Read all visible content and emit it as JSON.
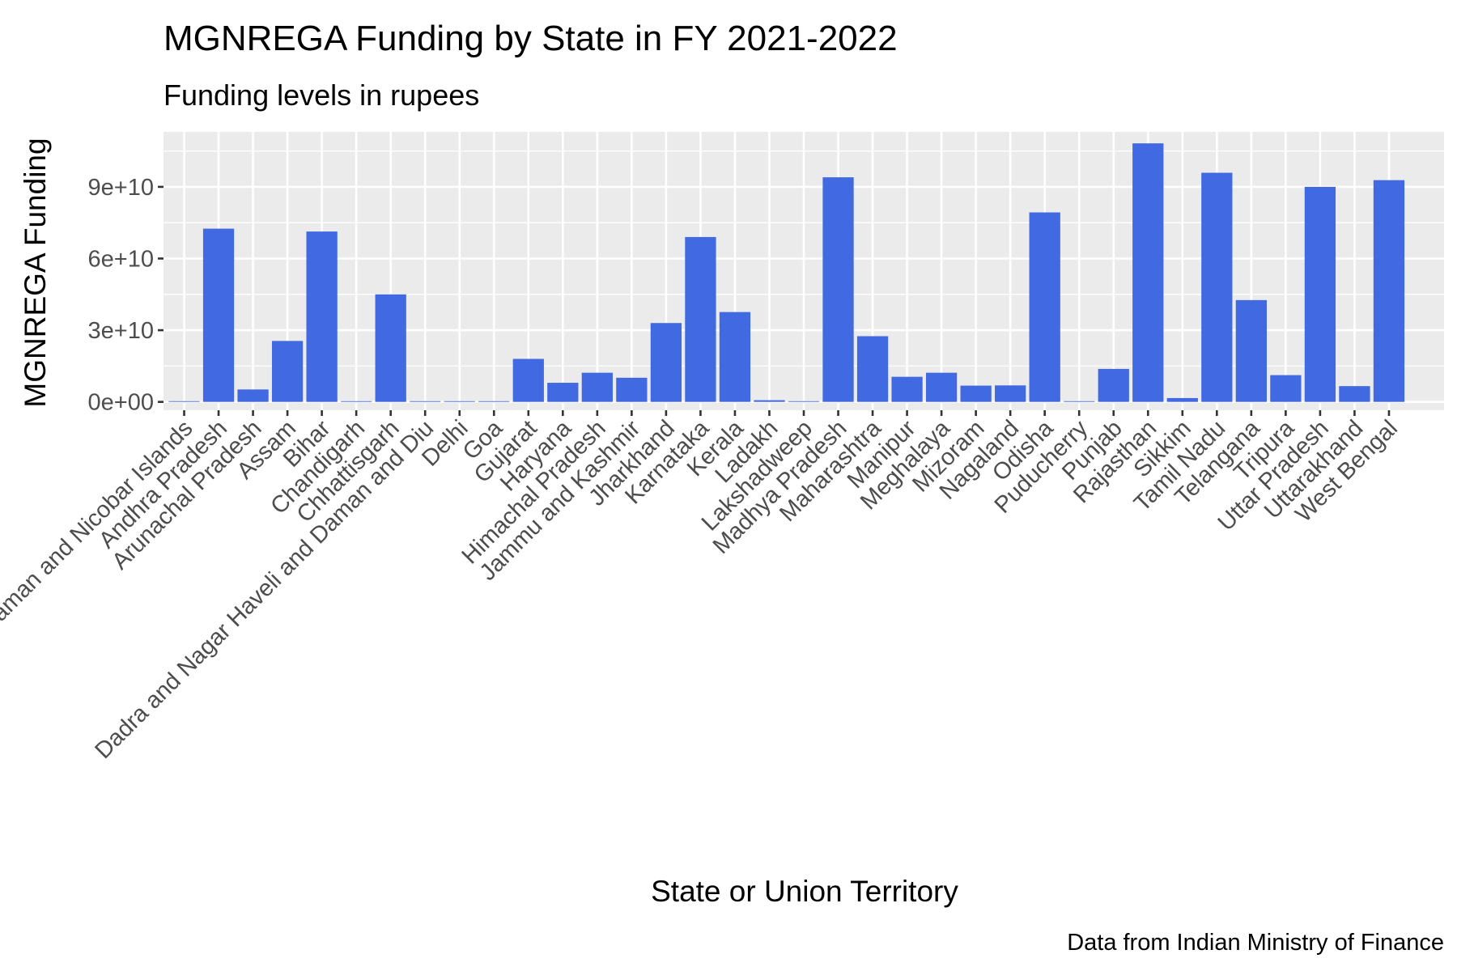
{
  "chart_data": {
    "type": "bar",
    "title": "MGNREGA Funding by State in FY 2021-2022",
    "subtitle": "Funding levels in rupees",
    "xlabel": "State or Union Territory",
    "ylabel": "MGNREGA Funding",
    "caption": "Data from Indian Ministry of Finance",
    "ylim": [
      -3500000000,
      113000000000
    ],
    "yticks": [
      0,
      30000000000,
      60000000000,
      90000000000
    ],
    "ytick_labels": [
      "0e+00",
      "3e+10",
      "6e+10",
      "9e+10"
    ],
    "bar_color": "#4169E1",
    "panel_color": "#EBEBEB",
    "grid": true,
    "legend": "none",
    "categories": [
      "Andaman and Nicobar Islands",
      "Andhra Pradesh",
      "Arunachal Pradesh",
      "Assam",
      "Bihar",
      "Chandigarh",
      "Chhattisgarh",
      "Dadra and Nagar Haveli and Daman and Diu",
      "Delhi",
      "Goa",
      "Gujarat",
      "Haryana",
      "Himachal Pradesh",
      "Jammu and Kashmir",
      "Jharkhand",
      "Karnataka",
      "Kerala",
      "Ladakh",
      "Lakshadweep",
      "Madhya Pradesh",
      "Maharashtra",
      "Manipur",
      "Meghalaya",
      "Mizoram",
      "Nagaland",
      "Odisha",
      "Puducherry",
      "Punjab",
      "Rajasthan",
      "Sikkim",
      "Tamil Nadu",
      "Telangana",
      "Tripura",
      "Uttar Pradesh",
      "Uttarakhand",
      "West Bengal"
    ],
    "values": [
      100000000,
      72500000000,
      5200000000,
      25500000000,
      71300000000,
      0,
      45000000000,
      50000000,
      0,
      150000000,
      18000000000,
      8000000000,
      12200000000,
      10100000000,
      33000000000,
      69000000000,
      37600000000,
      700000000,
      50000000,
      94000000000,
      27500000000,
      10500000000,
      12200000000,
      6800000000,
      6900000000,
      79300000000,
      300000000,
      13800000000,
      108200000000,
      1600000000,
      95900000000,
      42600000000,
      11200000000,
      90000000000,
      6600000000,
      92800000000
    ]
  }
}
